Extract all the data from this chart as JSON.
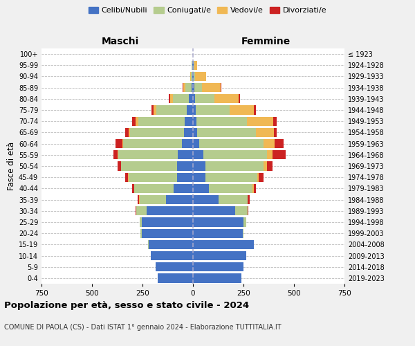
{
  "age_groups": [
    "0-4",
    "5-9",
    "10-14",
    "15-19",
    "20-24",
    "25-29",
    "30-34",
    "35-39",
    "40-44",
    "45-49",
    "50-54",
    "55-59",
    "60-64",
    "65-69",
    "70-74",
    "75-79",
    "80-84",
    "85-89",
    "90-94",
    "95-99",
    "100+"
  ],
  "birth_years": [
    "2019-2023",
    "2014-2018",
    "2009-2013",
    "2004-2008",
    "1999-2003",
    "1994-1998",
    "1989-1993",
    "1984-1988",
    "1979-1983",
    "1974-1978",
    "1969-1973",
    "1964-1968",
    "1959-1963",
    "1954-1958",
    "1949-1953",
    "1944-1948",
    "1939-1943",
    "1934-1938",
    "1929-1933",
    "1924-1928",
    "≤ 1923"
  ],
  "colors": {
    "celibe": "#4472c4",
    "coniugato": "#b5cc8e",
    "vedovo": "#f0b854",
    "divorziato": "#cc2222"
  },
  "legend_labels": [
    "Celibi/Nubili",
    "Coniugati/e",
    "Vedovi/e",
    "Divorziati/e"
  ],
  "legend_colors": [
    "#4472c4",
    "#b5cc8e",
    "#f0b854",
    "#cc2222"
  ],
  "maschi": {
    "celibe": [
      175,
      185,
      210,
      220,
      255,
      255,
      230,
      135,
      95,
      80,
      80,
      75,
      55,
      45,
      40,
      30,
      20,
      8,
      4,
      4,
      1
    ],
    "coniugato": [
      0,
      0,
      0,
      2,
      5,
      10,
      50,
      130,
      195,
      240,
      275,
      295,
      290,
      265,
      230,
      150,
      80,
      30,
      5,
      2,
      0
    ],
    "vedovo": [
      0,
      0,
      0,
      0,
      0,
      0,
      0,
      1,
      2,
      2,
      2,
      3,
      5,
      10,
      15,
      15,
      12,
      10,
      5,
      2,
      0
    ],
    "divorziato": [
      0,
      0,
      0,
      0,
      0,
      0,
      5,
      8,
      10,
      15,
      18,
      20,
      35,
      15,
      15,
      10,
      8,
      2,
      1,
      0,
      0
    ]
  },
  "femmine": {
    "nubile": [
      240,
      250,
      265,
      300,
      245,
      250,
      210,
      125,
      80,
      60,
      60,
      50,
      30,
      20,
      18,
      15,
      10,
      8,
      4,
      4,
      1
    ],
    "coniugata": [
      0,
      0,
      0,
      2,
      5,
      15,
      60,
      145,
      215,
      260,
      290,
      315,
      320,
      290,
      250,
      165,
      95,
      35,
      5,
      2,
      0
    ],
    "vedova": [
      0,
      0,
      0,
      0,
      0,
      0,
      0,
      2,
      5,
      5,
      15,
      30,
      55,
      90,
      130,
      120,
      120,
      95,
      55,
      15,
      0
    ],
    "divorziata": [
      0,
      0,
      0,
      0,
      0,
      0,
      5,
      8,
      10,
      25,
      30,
      65,
      45,
      15,
      15,
      10,
      8,
      2,
      1,
      0,
      0
    ]
  },
  "xlim": 750,
  "title": "Popolazione per età, sesso e stato civile - 2024",
  "subtitle": "COMUNE DI PAOLA (CS) - Dati ISTAT 1° gennaio 2024 - Elaborazione TUTTITALIA.IT",
  "xlabel_left": "Maschi",
  "xlabel_right": "Femmine",
  "ylabel_left": "Fasce di età",
  "bg_color": "#f0f0f0",
  "plot_bg": "#ffffff",
  "grid_color": "#bbbbbb"
}
